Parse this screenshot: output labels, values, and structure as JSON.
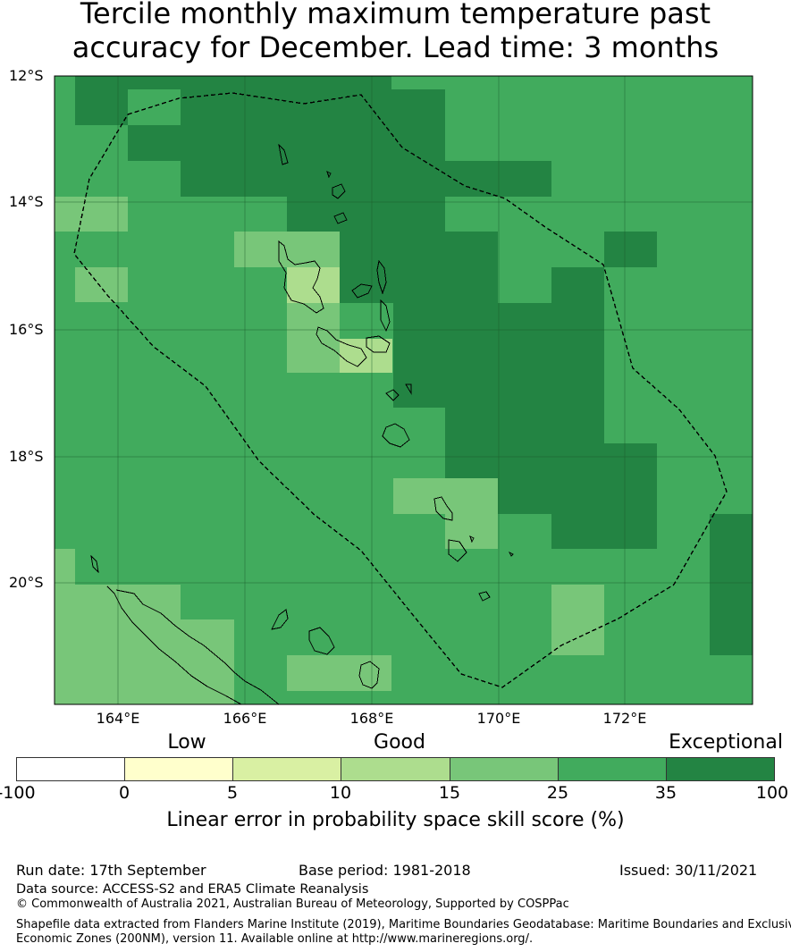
{
  "title": {
    "line1": "Tercile monthly maximum temperature past",
    "line2": "accuracy for December. Lead time: 3 months"
  },
  "map": {
    "lat_labels": [
      "12°S",
      "14°S",
      "16°S",
      "18°S",
      "20°S"
    ],
    "lon_labels": [
      "164°E",
      "166°E",
      "168°E",
      "170°E",
      "172°E"
    ],
    "region": "Vanuatu EEZ",
    "colors": {
      "skill_15_25": "#78c679",
      "skill_25_35": "#41ab5d",
      "skill_35_100": "#238443",
      "skill_10_15": "#addd8e",
      "skill_5_10": "#d9f0a3"
    }
  },
  "colorbar": {
    "categories": [
      {
        "label": "Low"
      },
      {
        "label": "Good"
      },
      {
        "label": "Exceptional"
      }
    ],
    "ticks": [
      "-100",
      "0",
      "5",
      "10",
      "15",
      "25",
      "35",
      "100"
    ],
    "bin_colors": [
      "#ffffff",
      "#ffffcc",
      "#d9f0a3",
      "#addd8e",
      "#78c679",
      "#41ab5d",
      "#238443"
    ],
    "label": "Linear error in probability space skill score (%)"
  },
  "footer": {
    "run_date": "Run date: 17th September",
    "base_period": "Base period: 1981-2018",
    "issued": "Issued: 30/11/2021",
    "data_source": "Data source: ACCESS-S2 and ERA5 Climate Reanalysis",
    "copyright": "© Commonwealth of Australia 2021, Australian Bureau of Meteorology, Supported by COSPPac",
    "shapefile_line1": "Shapefile data extracted from Flanders Marine Institute (2019), Maritime Boundaries Geodatabase: Maritime Boundaries and Exclusive",
    "shapefile_line2": "Economic Zones (200NM), version 11. Available online at http://www.marineregions.org/."
  }
}
